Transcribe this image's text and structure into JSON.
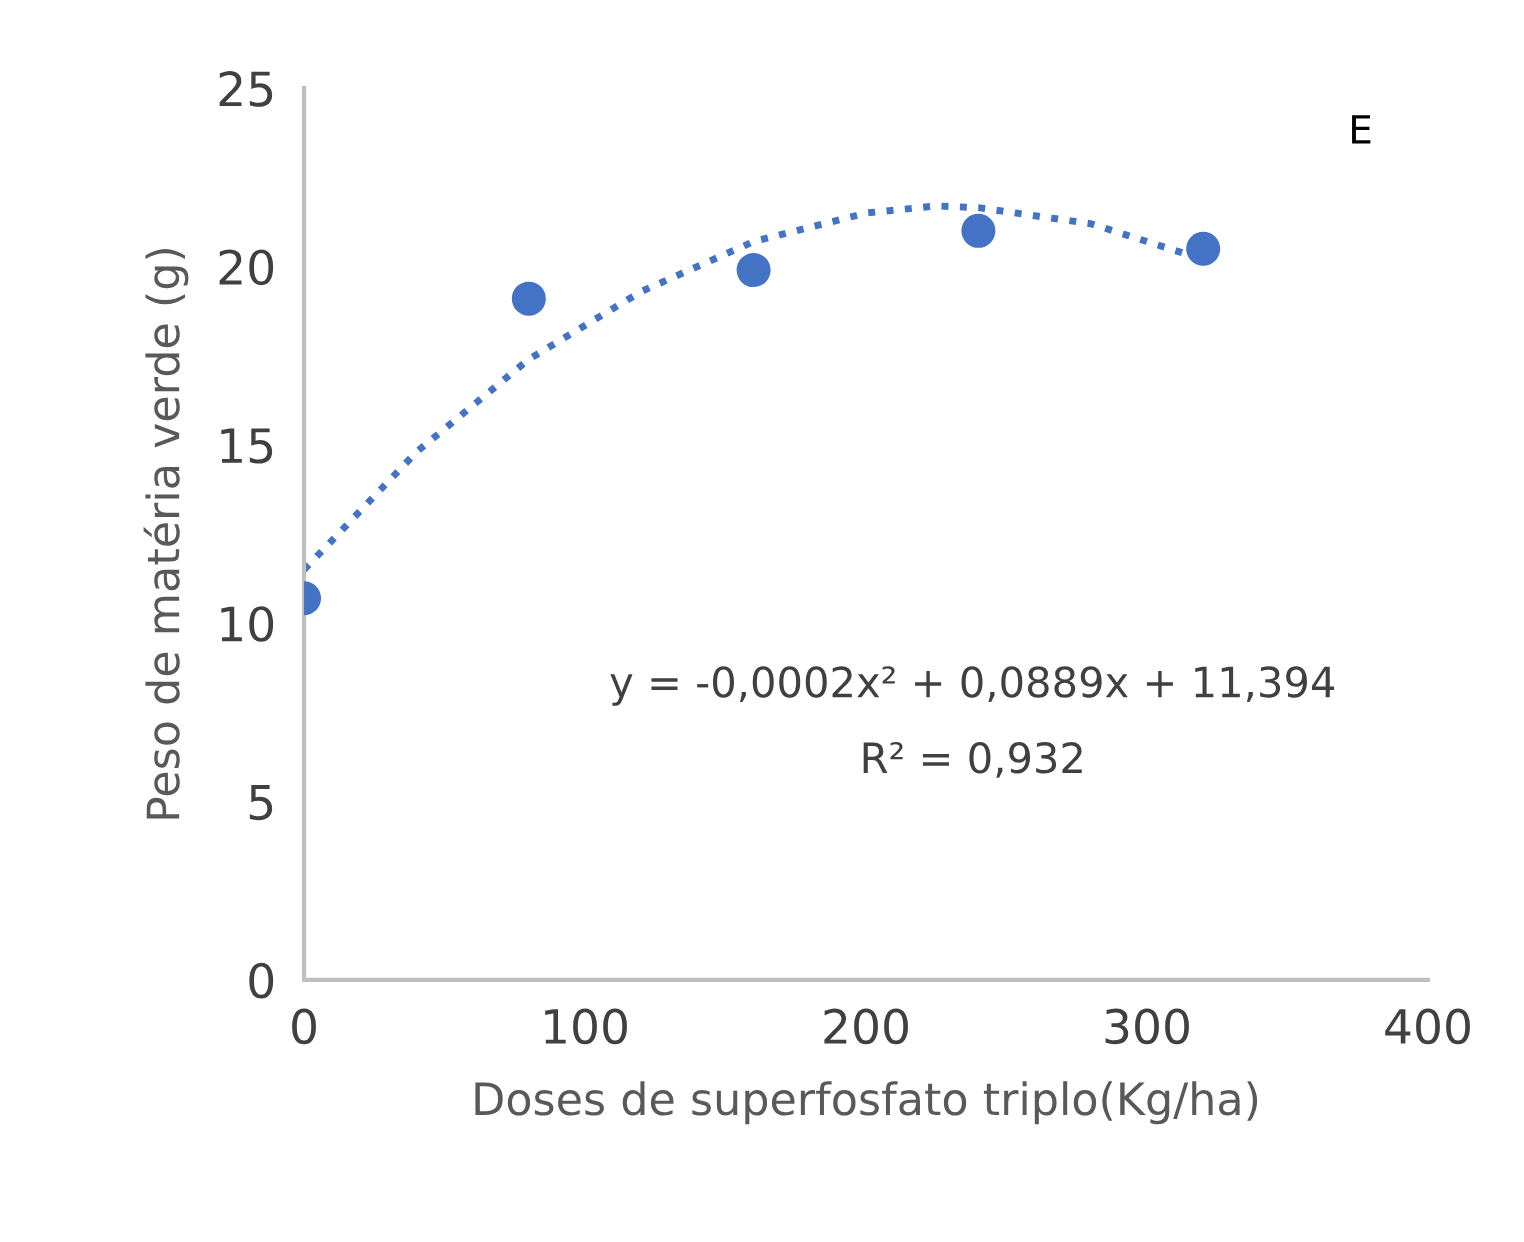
{
  "chart_data": {
    "type": "scatter",
    "xlabel": "Doses de superfosfato triplo(Kg/ha)",
    "ylabel": "Peso de matéria verde (g)",
    "xlim": [
      0,
      400
    ],
    "xticks": [
      0,
      100,
      200,
      300,
      400
    ],
    "ylim": [
      0,
      25
    ],
    "yticks": [
      0,
      5,
      10,
      15,
      20,
      25
    ],
    "grid": false,
    "legend": false,
    "series": [
      {
        "color": "#4472c4",
        "marker": "circle",
        "x": [
          0,
          80,
          160,
          240,
          320
        ],
        "values": [
          10.7,
          19.1,
          19.9,
          21.0,
          20.5
        ]
      },
      {
        "type": "line",
        "color": "#4472c4",
        "line_style": "dotted",
        "marker": "none",
        "x": [
          0,
          40,
          80,
          120,
          160,
          200,
          225,
          240,
          280,
          320
        ],
        "values": [
          11.5,
          14.8,
          17.4,
          19.3,
          20.7,
          21.5,
          21.7,
          21.65,
          21.2,
          20.2
        ]
      }
    ],
    "annotations": [
      "E",
      "y = -0,0002x² + 0,0889x + 11,394",
      "R² = 0,932"
    ]
  }
}
